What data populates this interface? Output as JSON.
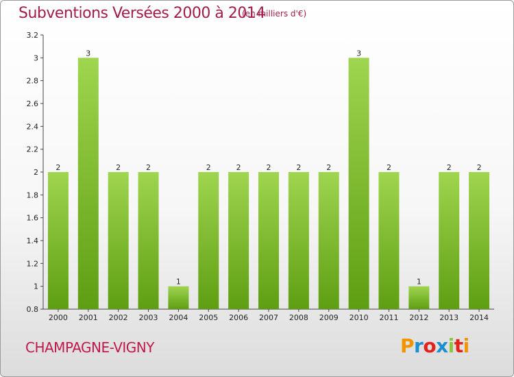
{
  "header": {
    "title": "Subventions Versées 2000 à 2014",
    "subtitle": "(en milliers d'€)"
  },
  "footer": {
    "commune": "CHAMPAGNE-VIGNY",
    "logo_text": "Proxiti",
    "logo_colors": [
      "#f29400",
      "#1d8ecf",
      "#e2231a",
      "#1d8ecf",
      "#8cc63f",
      "#e2231a",
      "#f29400"
    ]
  },
  "colors": {
    "bar_light": "#9fd54f",
    "bar_dark": "#5e9e12",
    "title": "#a01c4a"
  },
  "chart_data": {
    "type": "bar",
    "title": "Subventions Versées 2000 à 2014",
    "subtitle": "(en milliers d'€)",
    "categories": [
      "2000",
      "2001",
      "2002",
      "2003",
      "2004",
      "2005",
      "2006",
      "2007",
      "2008",
      "2009",
      "2010",
      "2011",
      "2012",
      "2013",
      "2014"
    ],
    "values": [
      2,
      3,
      2,
      2,
      1,
      2,
      2,
      2,
      2,
      2,
      3,
      2,
      1,
      2,
      2
    ],
    "data_labels": [
      "2",
      "3",
      "2",
      "2",
      "1",
      "2",
      "2",
      "2",
      "2",
      "2",
      "3",
      "2",
      "1",
      "2",
      "2"
    ],
    "ylim": [
      0.8,
      3.2
    ],
    "yticks": [
      0.8,
      1,
      1.2,
      1.4,
      1.6,
      1.8,
      2,
      2.2,
      2.4,
      2.6,
      2.8,
      3,
      3.2
    ],
    "ytick_labels": [
      "0.8",
      "1",
      "1.2",
      "1.4",
      "1.6",
      "1.8",
      "2",
      "2.2",
      "2.4",
      "2.6",
      "2.8",
      "3",
      "3.2"
    ],
    "grid": false
  }
}
